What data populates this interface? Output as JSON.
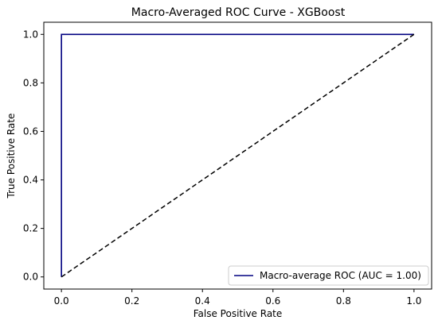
{
  "chart_data": {
    "type": "line",
    "title": "Macro-Averaged ROC Curve - XGBoost",
    "xlabel": "False Positive Rate",
    "ylabel": "True Positive Rate",
    "xlim": [
      -0.05,
      1.05
    ],
    "ylim": [
      -0.05,
      1.05
    ],
    "xticks": [
      0.0,
      0.2,
      0.4,
      0.6,
      0.8,
      1.0
    ],
    "yticks": [
      0.0,
      0.2,
      0.4,
      0.6,
      0.8,
      1.0
    ],
    "xtick_labels": [
      "0.0",
      "0.2",
      "0.4",
      "0.6",
      "0.8",
      "1.0"
    ],
    "ytick_labels": [
      "0.0",
      "0.2",
      "0.4",
      "0.6",
      "0.8",
      "1.0"
    ],
    "grid": false,
    "legend_position": "lower-right",
    "series": [
      {
        "name": "Macro-average ROC (AUC = 1.00)",
        "x": [
          0.0,
          0.0,
          1.0
        ],
        "y": [
          0.0,
          1.0,
          1.0
        ],
        "color": "#000080",
        "style": "solid"
      },
      {
        "x": [
          0.0,
          1.0
        ],
        "y": [
          0.0,
          1.0
        ],
        "color": "#000000",
        "style": "dashed"
      }
    ]
  }
}
